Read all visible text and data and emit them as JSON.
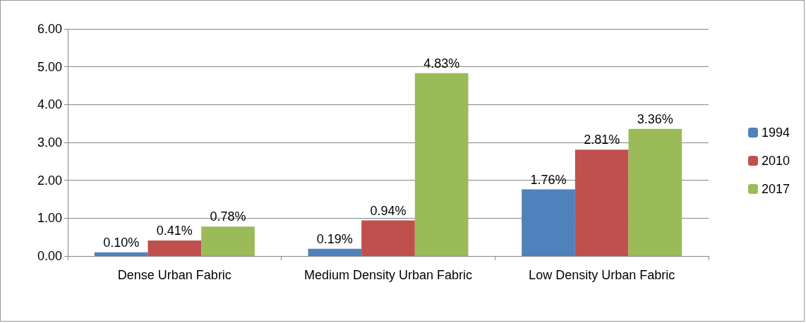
{
  "chart_data": {
    "type": "bar",
    "categories": [
      "Dense Urban Fabric",
      "Medium Density Urban Fabric",
      "Low Density Urban Fabric"
    ],
    "series": [
      {
        "name": "1994",
        "color": "#4f81bd",
        "values": [
          0.1,
          0.19,
          1.76
        ],
        "value_labels": [
          "0.10%",
          "0.19%",
          "1.76%"
        ]
      },
      {
        "name": "2010",
        "color": "#c0504d",
        "values": [
          0.41,
          0.94,
          2.81
        ],
        "value_labels": [
          "0.41%",
          "0.94%",
          "2.81%"
        ]
      },
      {
        "name": "2017",
        "color": "#9bbb59",
        "values": [
          0.78,
          4.83,
          3.36
        ],
        "value_labels": [
          "0.78%",
          "4.83%",
          "3.36%"
        ]
      }
    ],
    "ylim": [
      0,
      6
    ],
    "yticks": [
      {
        "value": 0,
        "label": "0.00"
      },
      {
        "value": 1,
        "label": "1.00"
      },
      {
        "value": 2,
        "label": "2.00"
      },
      {
        "value": 3,
        "label": "3.00"
      },
      {
        "value": 4,
        "label": "4.00"
      },
      {
        "value": 5,
        "label": "5.00"
      },
      {
        "value": 6,
        "label": "6.00"
      }
    ],
    "grid": "y",
    "legend": "right"
  }
}
